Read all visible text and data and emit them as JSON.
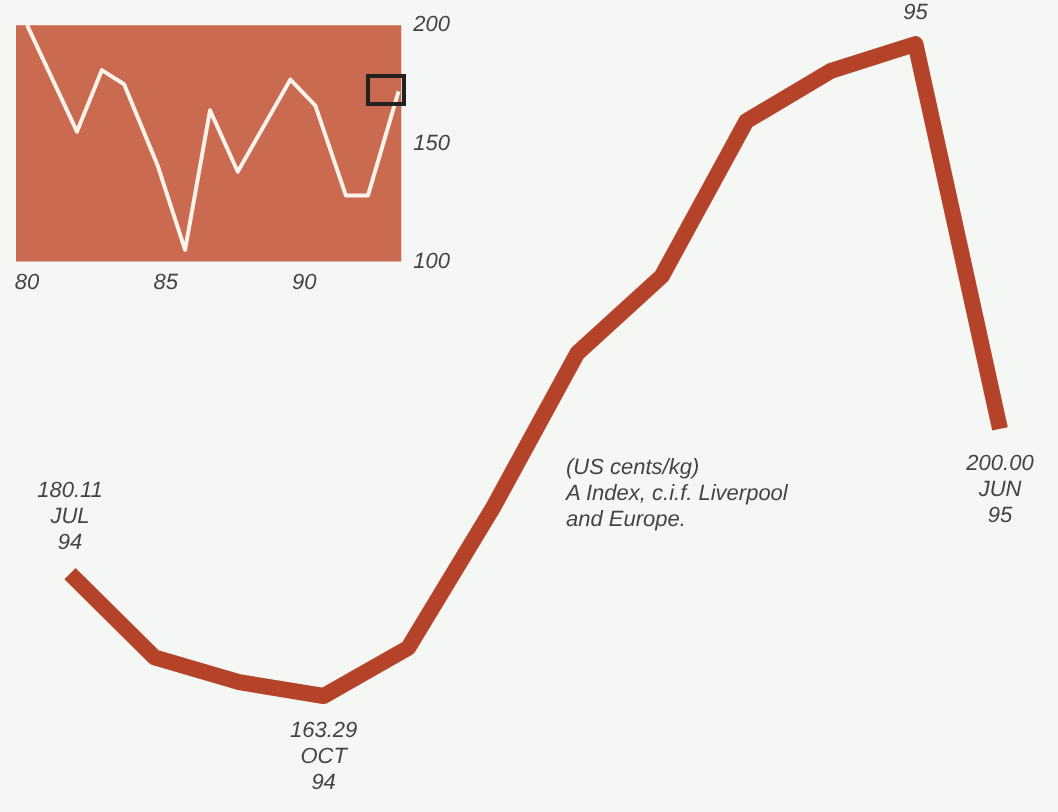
{
  "chart_data": [
    {
      "type": "line",
      "categories": [
        null,
        null,
        null,
        null,
        null,
        null,
        null,
        null,
        null,
        null,
        null,
        null
      ],
      "series": [
        {
          "color": "#b5432a",
          "values": [
            180.11,
            168.6,
            165.2,
            163.29,
            169.9,
            189.1,
            210.4,
            221.0,
            242.3,
            249.2,
            252.9,
            200.0
          ],
          "value_labels": [
            "180.11\nJUL\n94",
            null,
            null,
            "163.29\nOCT\n94",
            null,
            null,
            null,
            null,
            null,
            null,
            null,
            "200.00\nJUN\n95"
          ]
        }
      ],
      "marker": "none",
      "annotations": [
        "(US cents/kg)\nA Index, c.i.f. Liverpool\nand Europe.",
        {
          "text": "95",
          "y": 252.9
        }
      ]
    },
    {
      "type": "line",
      "x": [
        80,
        81.8,
        82.7,
        83.5,
        84.7,
        85.7,
        86.6,
        87.6,
        89.5,
        90.4,
        91.5,
        92.3,
        93.4
      ],
      "series": [
        {
          "color": "#fdf3ea",
          "values": [
            200,
            155,
            181,
            175,
            141,
            105,
            164,
            138,
            177,
            166,
            128,
            128,
            172
          ]
        }
      ],
      "marker": "none",
      "xlim": [
        79.6,
        93.5
      ],
      "xticks": [
        80,
        85,
        90
      ],
      "ylim": [
        100,
        200
      ],
      "yticks": [
        100,
        150,
        200
      ]
    }
  ]
}
